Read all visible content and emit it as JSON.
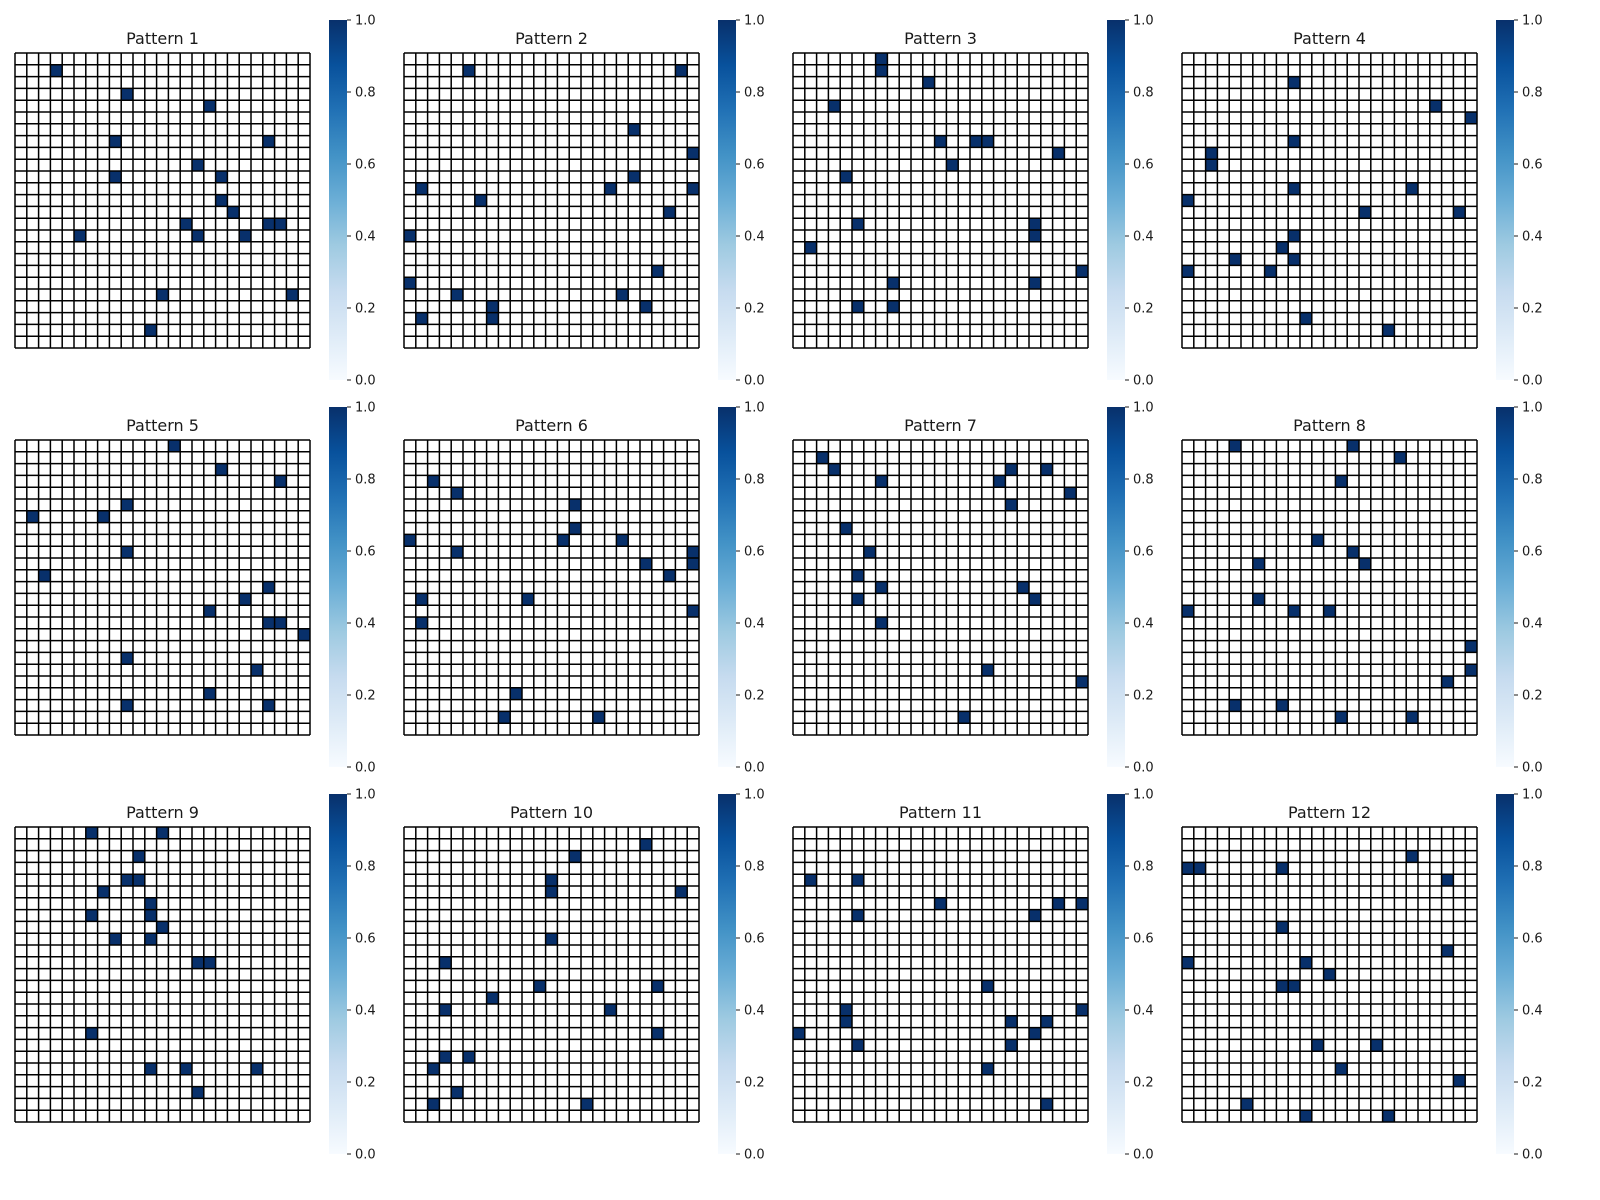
{
  "figure": {
    "colormap": "Blues",
    "cell_on_color": "#08306b",
    "cell_off_color": "#ffffff",
    "grid_line_color": "#000000"
  },
  "chart_data": [
    {
      "type": "heatmap",
      "title": "Pattern 1",
      "rows": 25,
      "cols": 25,
      "vmin": 0.0,
      "vmax": 1.0,
      "colorbar_ticks": [
        "0.0",
        "0.2",
        "0.4",
        "0.6",
        "0.8",
        "1.0"
      ],
      "xticks": [],
      "yticks": [],
      "cells_value_1": [
        [
          1,
          3
        ],
        [
          3,
          9
        ],
        [
          4,
          16
        ],
        [
          7,
          8
        ],
        [
          7,
          21
        ],
        [
          9,
          15
        ],
        [
          10,
          8
        ],
        [
          10,
          17
        ],
        [
          12,
          17
        ],
        [
          13,
          18
        ],
        [
          14,
          14
        ],
        [
          14,
          21
        ],
        [
          14,
          22
        ],
        [
          15,
          5
        ],
        [
          15,
          15
        ],
        [
          15,
          19
        ],
        [
          20,
          12
        ],
        [
          20,
          23
        ],
        [
          23,
          11
        ]
      ]
    },
    {
      "type": "heatmap",
      "title": "Pattern 2",
      "rows": 25,
      "cols": 25,
      "vmin": 0.0,
      "vmax": 1.0,
      "colorbar_ticks": [
        "0.0",
        "0.2",
        "0.4",
        "0.6",
        "0.8",
        "1.0"
      ],
      "xticks": [],
      "yticks": [],
      "cells_value_1": [
        [
          1,
          5
        ],
        [
          1,
          23
        ],
        [
          6,
          19
        ],
        [
          8,
          24
        ],
        [
          10,
          19
        ],
        [
          11,
          1
        ],
        [
          11,
          17
        ],
        [
          11,
          24
        ],
        [
          12,
          6
        ],
        [
          13,
          22
        ],
        [
          15,
          0
        ],
        [
          18,
          21
        ],
        [
          19,
          0
        ],
        [
          20,
          4
        ],
        [
          20,
          18
        ],
        [
          21,
          7
        ],
        [
          21,
          20
        ],
        [
          22,
          1
        ],
        [
          22,
          7
        ]
      ]
    },
    {
      "type": "heatmap",
      "title": "Pattern 3",
      "rows": 25,
      "cols": 25,
      "vmin": 0.0,
      "vmax": 1.0,
      "colorbar_ticks": [
        "0.0",
        "0.2",
        "0.4",
        "0.6",
        "0.8",
        "1.0"
      ],
      "xticks": [],
      "yticks": [],
      "cells_value_1": [
        [
          0,
          7
        ],
        [
          1,
          7
        ],
        [
          2,
          11
        ],
        [
          4,
          3
        ],
        [
          7,
          12
        ],
        [
          7,
          15
        ],
        [
          7,
          16
        ],
        [
          8,
          22
        ],
        [
          9,
          13
        ],
        [
          10,
          4
        ],
        [
          14,
          5
        ],
        [
          14,
          20
        ],
        [
          15,
          20
        ],
        [
          16,
          1
        ],
        [
          19,
          8
        ],
        [
          19,
          20
        ],
        [
          18,
          24
        ],
        [
          21,
          5
        ],
        [
          21,
          8
        ]
      ]
    },
    {
      "type": "heatmap",
      "title": "Pattern 4",
      "rows": 25,
      "cols": 25,
      "vmin": 0.0,
      "vmax": 1.0,
      "colorbar_ticks": [
        "0.0",
        "0.2",
        "0.4",
        "0.6",
        "0.8",
        "1.0"
      ],
      "xticks": [],
      "yticks": [],
      "cells_value_1": [
        [
          2,
          9
        ],
        [
          4,
          21
        ],
        [
          5,
          24
        ],
        [
          7,
          9
        ],
        [
          8,
          2
        ],
        [
          9,
          2
        ],
        [
          11,
          9
        ],
        [
          11,
          19
        ],
        [
          12,
          0
        ],
        [
          13,
          15
        ],
        [
          13,
          23
        ],
        [
          15,
          9
        ],
        [
          16,
          8
        ],
        [
          17,
          4
        ],
        [
          17,
          9
        ],
        [
          18,
          0
        ],
        [
          18,
          7
        ],
        [
          22,
          10
        ],
        [
          23,
          17
        ]
      ]
    },
    {
      "type": "heatmap",
      "title": "Pattern 5",
      "rows": 25,
      "cols": 25,
      "vmin": 0.0,
      "vmax": 1.0,
      "colorbar_ticks": [
        "0.0",
        "0.2",
        "0.4",
        "0.6",
        "0.8",
        "1.0"
      ],
      "xticks": [],
      "yticks": [],
      "cells_value_1": [
        [
          0,
          13
        ],
        [
          2,
          17
        ],
        [
          3,
          22
        ],
        [
          5,
          9
        ],
        [
          6,
          1
        ],
        [
          6,
          7
        ],
        [
          9,
          9
        ],
        [
          11,
          2
        ],
        [
          12,
          21
        ],
        [
          13,
          19
        ],
        [
          14,
          16
        ],
        [
          15,
          21
        ],
        [
          15,
          22
        ],
        [
          16,
          24
        ],
        [
          18,
          9
        ],
        [
          19,
          20
        ],
        [
          21,
          16
        ],
        [
          22,
          9
        ],
        [
          22,
          21
        ]
      ]
    },
    {
      "type": "heatmap",
      "title": "Pattern 6",
      "rows": 25,
      "cols": 25,
      "vmin": 0.0,
      "vmax": 1.0,
      "colorbar_ticks": [
        "0.0",
        "0.2",
        "0.4",
        "0.6",
        "0.8",
        "1.0"
      ],
      "xticks": [],
      "yticks": [],
      "cells_value_1": [
        [
          3,
          2
        ],
        [
          4,
          4
        ],
        [
          5,
          14
        ],
        [
          7,
          14
        ],
        [
          8,
          0
        ],
        [
          8,
          13
        ],
        [
          8,
          18
        ],
        [
          9,
          4
        ],
        [
          9,
          24
        ],
        [
          10,
          20
        ],
        [
          10,
          24
        ],
        [
          11,
          22
        ],
        [
          13,
          1
        ],
        [
          13,
          10
        ],
        [
          14,
          24
        ],
        [
          15,
          1
        ],
        [
          21,
          9
        ],
        [
          23,
          8
        ],
        [
          23,
          16
        ]
      ]
    },
    {
      "type": "heatmap",
      "title": "Pattern 7",
      "rows": 25,
      "cols": 25,
      "vmin": 0.0,
      "vmax": 1.0,
      "colorbar_ticks": [
        "0.0",
        "0.2",
        "0.4",
        "0.6",
        "0.8",
        "1.0"
      ],
      "xticks": [],
      "yticks": [],
      "cells_value_1": [
        [
          1,
          2
        ],
        [
          2,
          3
        ],
        [
          2,
          18
        ],
        [
          2,
          21
        ],
        [
          3,
          7
        ],
        [
          3,
          17
        ],
        [
          4,
          23
        ],
        [
          5,
          18
        ],
        [
          7,
          4
        ],
        [
          9,
          6
        ],
        [
          11,
          5
        ],
        [
          12,
          7
        ],
        [
          12,
          19
        ],
        [
          13,
          5
        ],
        [
          13,
          20
        ],
        [
          15,
          7
        ],
        [
          19,
          16
        ],
        [
          20,
          24
        ],
        [
          23,
          14
        ]
      ]
    },
    {
      "type": "heatmap",
      "title": "Pattern 8",
      "rows": 25,
      "cols": 25,
      "vmin": 0.0,
      "vmax": 1.0,
      "colorbar_ticks": [
        "0.0",
        "0.2",
        "0.4",
        "0.6",
        "0.8",
        "1.0"
      ],
      "xticks": [],
      "yticks": [],
      "cells_value_1": [
        [
          0,
          4
        ],
        [
          0,
          14
        ],
        [
          1,
          18
        ],
        [
          3,
          13
        ],
        [
          8,
          11
        ],
        [
          9,
          14
        ],
        [
          10,
          6
        ],
        [
          10,
          15
        ],
        [
          13,
          6
        ],
        [
          14,
          0
        ],
        [
          14,
          9
        ],
        [
          14,
          12
        ],
        [
          17,
          24
        ],
        [
          19,
          24
        ],
        [
          20,
          22
        ],
        [
          22,
          4
        ],
        [
          22,
          8
        ],
        [
          23,
          13
        ],
        [
          23,
          19
        ]
      ]
    },
    {
      "type": "heatmap",
      "title": "Pattern 9",
      "rows": 25,
      "cols": 25,
      "vmin": 0.0,
      "vmax": 1.0,
      "colorbar_ticks": [
        "0.0",
        "0.2",
        "0.4",
        "0.6",
        "0.8",
        "1.0"
      ],
      "xticks": [],
      "yticks": [],
      "cells_value_1": [
        [
          0,
          6
        ],
        [
          0,
          12
        ],
        [
          2,
          10
        ],
        [
          4,
          9
        ],
        [
          4,
          10
        ],
        [
          5,
          7
        ],
        [
          6,
          11
        ],
        [
          7,
          6
        ],
        [
          7,
          11
        ],
        [
          8,
          12
        ],
        [
          9,
          8
        ],
        [
          9,
          11
        ],
        [
          11,
          15
        ],
        [
          11,
          16
        ],
        [
          17,
          6
        ],
        [
          20,
          11
        ],
        [
          20,
          14
        ],
        [
          20,
          20
        ],
        [
          22,
          15
        ]
      ]
    },
    {
      "type": "heatmap",
      "title": "Pattern 10",
      "rows": 25,
      "cols": 25,
      "vmin": 0.0,
      "vmax": 1.0,
      "colorbar_ticks": [
        "0.0",
        "0.2",
        "0.4",
        "0.6",
        "0.8",
        "1.0"
      ],
      "xticks": [],
      "yticks": [],
      "cells_value_1": [
        [
          1,
          20
        ],
        [
          2,
          14
        ],
        [
          4,
          12
        ],
        [
          5,
          12
        ],
        [
          5,
          23
        ],
        [
          9,
          12
        ],
        [
          11,
          3
        ],
        [
          13,
          11
        ],
        [
          13,
          21
        ],
        [
          14,
          7
        ],
        [
          15,
          3
        ],
        [
          15,
          17
        ],
        [
          17,
          21
        ],
        [
          19,
          3
        ],
        [
          19,
          5
        ],
        [
          20,
          2
        ],
        [
          22,
          4
        ],
        [
          23,
          2
        ],
        [
          23,
          15
        ]
      ]
    },
    {
      "type": "heatmap",
      "title": "Pattern 11",
      "rows": 25,
      "cols": 25,
      "vmin": 0.0,
      "vmax": 1.0,
      "colorbar_ticks": [
        "0.0",
        "0.2",
        "0.4",
        "0.6",
        "0.8",
        "1.0"
      ],
      "xticks": [],
      "yticks": [],
      "cells_value_1": [
        [
          4,
          1
        ],
        [
          4,
          5
        ],
        [
          6,
          12
        ],
        [
          6,
          22
        ],
        [
          6,
          24
        ],
        [
          7,
          5
        ],
        [
          7,
          20
        ],
        [
          13,
          16
        ],
        [
          15,
          4
        ],
        [
          15,
          24
        ],
        [
          16,
          4
        ],
        [
          16,
          18
        ],
        [
          16,
          21
        ],
        [
          17,
          0
        ],
        [
          17,
          20
        ],
        [
          18,
          5
        ],
        [
          18,
          18
        ],
        [
          20,
          16
        ],
        [
          23,
          21
        ]
      ]
    },
    {
      "type": "heatmap",
      "title": "Pattern 12",
      "rows": 25,
      "cols": 25,
      "vmin": 0.0,
      "vmax": 1.0,
      "colorbar_ticks": [
        "0.0",
        "0.2",
        "0.4",
        "0.6",
        "0.8",
        "1.0"
      ],
      "xticks": [],
      "yticks": [],
      "cells_value_1": [
        [
          2,
          19
        ],
        [
          3,
          0
        ],
        [
          3,
          1
        ],
        [
          3,
          8
        ],
        [
          4,
          22
        ],
        [
          8,
          8
        ],
        [
          10,
          22
        ],
        [
          11,
          0
        ],
        [
          11,
          10
        ],
        [
          12,
          12
        ],
        [
          13,
          8
        ],
        [
          13,
          9
        ],
        [
          18,
          11
        ],
        [
          18,
          16
        ],
        [
          20,
          13
        ],
        [
          21,
          23
        ],
        [
          23,
          5
        ],
        [
          24,
          10
        ],
        [
          24,
          17
        ]
      ]
    }
  ]
}
